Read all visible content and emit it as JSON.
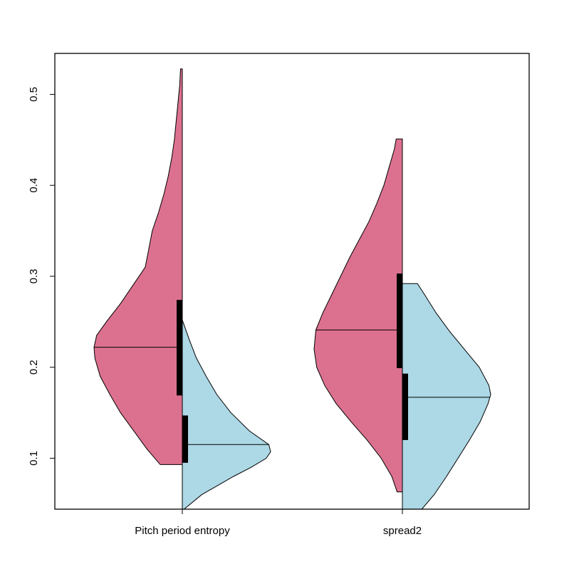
{
  "chart_data": {
    "type": "violin",
    "title": "",
    "xlabel": "",
    "ylabel": "",
    "categories": [
      "Pitch period entropy",
      "spread2"
    ],
    "ylim": [
      0.044,
      0.545
    ],
    "yticks": [
      0.1,
      0.2,
      0.3,
      0.4,
      0.5
    ],
    "ytick_labels": [
      "0.1",
      "0.2",
      "0.3",
      "0.4",
      "0.5"
    ],
    "grid": false,
    "legend": "none",
    "series": [
      {
        "side": "left",
        "color": "#DC718F",
        "violins": [
          {
            "category": "Pitch period entropy",
            "min": 0.093,
            "max": 0.528,
            "median": 0.222,
            "q1": 0.169,
            "q3": 0.274,
            "density": [
              [
                0.093,
                0.25
              ],
              [
                0.11,
                0.4
              ],
              [
                0.13,
                0.55
              ],
              [
                0.15,
                0.7
              ],
              [
                0.17,
                0.82
              ],
              [
                0.19,
                0.93
              ],
              [
                0.21,
                0.99
              ],
              [
                0.222,
                1.0
              ],
              [
                0.235,
                0.97
              ],
              [
                0.25,
                0.86
              ],
              [
                0.27,
                0.7
              ],
              [
                0.29,
                0.56
              ],
              [
                0.31,
                0.42
              ],
              [
                0.33,
                0.38
              ],
              [
                0.35,
                0.34
              ],
              [
                0.37,
                0.27
              ],
              [
                0.39,
                0.21
              ],
              [
                0.41,
                0.16
              ],
              [
                0.43,
                0.12
              ],
              [
                0.45,
                0.09
              ],
              [
                0.47,
                0.07
              ],
              [
                0.49,
                0.05
              ],
              [
                0.51,
                0.03
              ],
              [
                0.528,
                0.02
              ]
            ]
          },
          {
            "category": "spread2",
            "min": 0.063,
            "max": 0.451,
            "median": 0.241,
            "q1": 0.199,
            "q3": 0.303,
            "density": [
              [
                0.063,
                0.06
              ],
              [
                0.08,
                0.12
              ],
              [
                0.1,
                0.24
              ],
              [
                0.12,
                0.4
              ],
              [
                0.14,
                0.58
              ],
              [
                0.16,
                0.75
              ],
              [
                0.18,
                0.88
              ],
              [
                0.2,
                0.97
              ],
              [
                0.22,
                1.0
              ],
              [
                0.241,
                0.98
              ],
              [
                0.26,
                0.9
              ],
              [
                0.28,
                0.8
              ],
              [
                0.3,
                0.7
              ],
              [
                0.32,
                0.6
              ],
              [
                0.34,
                0.49
              ],
              [
                0.36,
                0.38
              ],
              [
                0.38,
                0.29
              ],
              [
                0.4,
                0.21
              ],
              [
                0.42,
                0.15
              ],
              [
                0.44,
                0.09
              ],
              [
                0.451,
                0.07
              ]
            ]
          }
        ]
      },
      {
        "side": "right",
        "color": "#ADD8E6",
        "violins": [
          {
            "category": "Pitch period entropy",
            "min": 0.044,
            "max": 0.252,
            "median": 0.115,
            "q1": 0.095,
            "q3": 0.147,
            "density": [
              [
                0.044,
                0.02
              ],
              [
                0.06,
                0.22
              ],
              [
                0.07,
                0.4
              ],
              [
                0.08,
                0.58
              ],
              [
                0.09,
                0.78
              ],
              [
                0.1,
                0.95
              ],
              [
                0.107,
                1.0
              ],
              [
                0.115,
                0.98
              ],
              [
                0.13,
                0.76
              ],
              [
                0.15,
                0.55
              ],
              [
                0.17,
                0.39
              ],
              [
                0.19,
                0.27
              ],
              [
                0.21,
                0.16
              ],
              [
                0.23,
                0.08
              ],
              [
                0.252,
                0.0
              ]
            ]
          },
          {
            "category": "spread2",
            "min": 0.044,
            "max": 0.292,
            "median": 0.167,
            "q1": 0.12,
            "q3": 0.193,
            "density": [
              [
                0.044,
                0.22
              ],
              [
                0.06,
                0.36
              ],
              [
                0.08,
                0.5
              ],
              [
                0.1,
                0.63
              ],
              [
                0.12,
                0.76
              ],
              [
                0.14,
                0.88
              ],
              [
                0.16,
                0.97
              ],
              [
                0.17,
                1.0
              ],
              [
                0.18,
                0.98
              ],
              [
                0.2,
                0.87
              ],
              [
                0.22,
                0.7
              ],
              [
                0.24,
                0.53
              ],
              [
                0.26,
                0.38
              ],
              [
                0.28,
                0.25
              ],
              [
                0.292,
                0.17
              ]
            ]
          }
        ]
      }
    ]
  }
}
